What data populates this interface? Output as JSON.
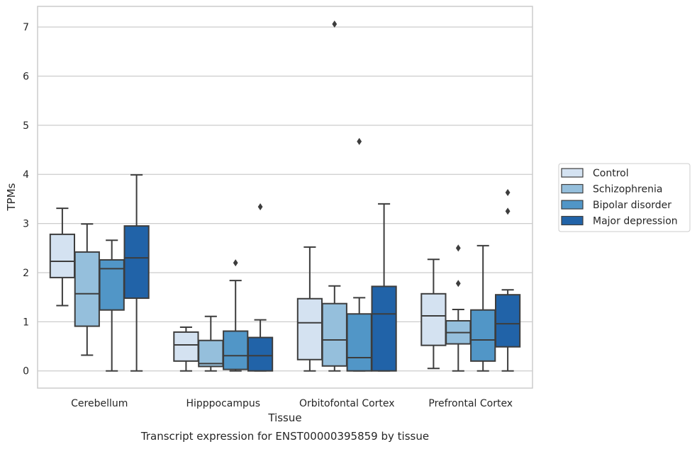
{
  "chart_data": {
    "type": "box",
    "title": "",
    "caption": "Transcript expression for ENST00000395859 by tissue",
    "xlabel": "Tissue",
    "ylabel": "TPMs",
    "ylim": [
      -0.35,
      7.42
    ],
    "yticks": [
      0,
      1,
      2,
      3,
      4,
      5,
      6,
      7
    ],
    "grid": "horizontal",
    "legend_position": "right",
    "categories": [
      "Cerebellum",
      "Hipppocampus",
      "Orbitofontal Cortex",
      "Prefrontal Cortex"
    ],
    "series": [
      {
        "name": "Control",
        "color": "#d4e2f1",
        "boxes": [
          {
            "whisker_low": 1.33,
            "q1": 1.9,
            "median": 2.23,
            "q3": 2.78,
            "whisker_high": 3.31,
            "outliers": []
          },
          {
            "whisker_low": 0.0,
            "q1": 0.2,
            "median": 0.53,
            "q3": 0.79,
            "whisker_high": 0.89,
            "outliers": []
          },
          {
            "whisker_low": 0.0,
            "q1": 0.23,
            "median": 0.98,
            "q3": 1.47,
            "whisker_high": 2.52,
            "outliers": []
          },
          {
            "whisker_low": 0.05,
            "q1": 0.52,
            "median": 1.12,
            "q3": 1.57,
            "whisker_high": 2.27,
            "outliers": []
          }
        ]
      },
      {
        "name": "Schizophrenia",
        "color": "#95bfdc",
        "boxes": [
          {
            "whisker_low": 0.32,
            "q1": 0.91,
            "median": 1.57,
            "q3": 2.42,
            "whisker_high": 2.99,
            "outliers": []
          },
          {
            "whisker_low": 0.0,
            "q1": 0.09,
            "median": 0.15,
            "q3": 0.62,
            "whisker_high": 1.11,
            "outliers": []
          },
          {
            "whisker_low": 0.0,
            "q1": 0.1,
            "median": 0.63,
            "q3": 1.37,
            "whisker_high": 1.73,
            "outliers": [
              7.06
            ]
          },
          {
            "whisker_low": 0.0,
            "q1": 0.55,
            "median": 0.78,
            "q3": 1.02,
            "whisker_high": 1.25,
            "outliers": [
              1.78,
              2.5
            ]
          }
        ]
      },
      {
        "name": "Bipolar disorder",
        "color": "#5196c7",
        "boxes": [
          {
            "whisker_low": 0.0,
            "q1": 1.24,
            "median": 2.08,
            "q3": 2.26,
            "whisker_high": 2.66,
            "outliers": []
          },
          {
            "whisker_low": 0.0,
            "q1": 0.03,
            "median": 0.31,
            "q3": 0.81,
            "whisker_high": 1.84,
            "outliers": [
              2.2
            ]
          },
          {
            "whisker_low": 0.0,
            "q1": 0.0,
            "median": 0.27,
            "q3": 1.16,
            "whisker_high": 1.49,
            "outliers": [
              4.67
            ]
          },
          {
            "whisker_low": 0.0,
            "q1": 0.2,
            "median": 0.63,
            "q3": 1.24,
            "whisker_high": 2.55,
            "outliers": []
          }
        ]
      },
      {
        "name": "Major depression",
        "color": "#2163a8",
        "boxes": [
          {
            "whisker_low": 0.0,
            "q1": 1.48,
            "median": 2.3,
            "q3": 2.95,
            "whisker_high": 3.99,
            "outliers": []
          },
          {
            "whisker_low": 0.0,
            "q1": 0.0,
            "median": 0.31,
            "q3": 0.68,
            "whisker_high": 1.04,
            "outliers": [
              3.34
            ]
          },
          {
            "whisker_low": 0.0,
            "q1": 0.0,
            "median": 1.16,
            "q3": 1.72,
            "whisker_high": 3.4,
            "outliers": []
          },
          {
            "whisker_low": 0.0,
            "q1": 0.49,
            "median": 0.96,
            "q3": 1.55,
            "whisker_high": 1.65,
            "outliers": [
              3.25,
              3.63
            ]
          }
        ]
      }
    ]
  }
}
